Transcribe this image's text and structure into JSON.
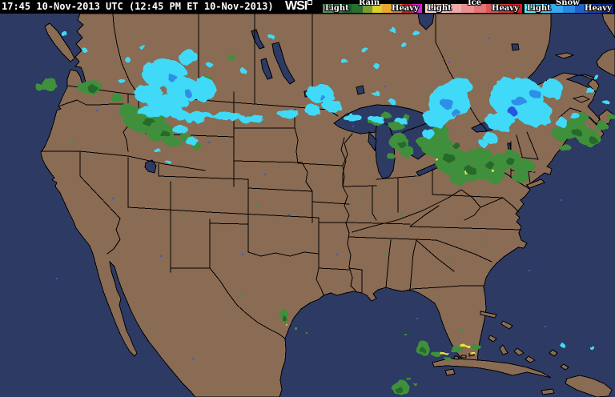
{
  "header": {
    "timestamp": "17:45 10-Nov-2013 UTC (12:45 PM ET 10-Nov-2013)",
    "logo_text": "WSI"
  },
  "legend": {
    "rain": {
      "title": "Rain",
      "light_label": "Light",
      "heavy_label": "Heavy",
      "colors": [
        "#5a8a5a",
        "#3a7a44",
        "#1e6030",
        "#27702e",
        "#7a9c30",
        "#d8d030",
        "#e8a832",
        "#d08048",
        "#cc2222",
        "#dd22dd"
      ]
    },
    "ice": {
      "title": "Ice",
      "light_label": "Light",
      "heavy_label": "Heavy",
      "colors": [
        "#f8d8d8",
        "#f4c2c2",
        "#eeaaaa",
        "#e89090",
        "#e27474",
        "#dc5656",
        "#d83838",
        "#e01c1c"
      ]
    },
    "snow": {
      "title": "Snow",
      "light_label": "Light",
      "heavy_label": "Heavy",
      "colors": [
        "#58ecf8",
        "#44ccf4",
        "#36aaee",
        "#2a88e0",
        "#2062cc",
        "#1840b4",
        "#0f2898"
      ]
    }
  },
  "map": {
    "colors": {
      "ocean": "#2d3a63",
      "land": "#8a6b54",
      "snow_light": "#3fd9f7",
      "snow_mid": "#2e8ee8",
      "snow_deep": "#2b55e0",
      "rain_light": "#55a84c",
      "rain_mid": "#3f8f3e",
      "rain_dark": "#276b29",
      "rain_yellow": "#e8e43a",
      "speck_blue": "#3d5cb8"
    }
  }
}
